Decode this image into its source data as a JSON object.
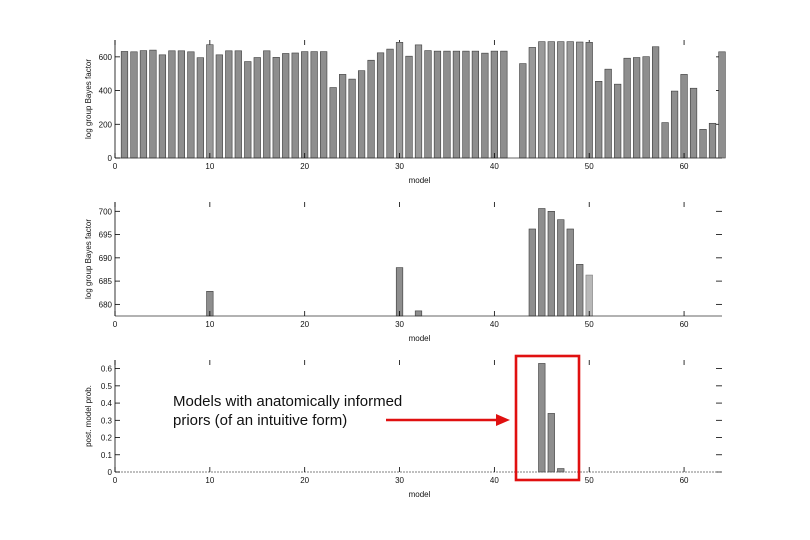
{
  "chart_data": [
    {
      "type": "bar",
      "xlabel": "model",
      "ylabel": "log group Bayes factor",
      "xlim": [
        0,
        64
      ],
      "ylim": [
        0,
        700
      ],
      "xticks": [
        0,
        10,
        20,
        30,
        40,
        50,
        60
      ],
      "yticks": [
        0,
        200,
        400,
        600
      ],
      "x": [
        1,
        2,
        3,
        4,
        5,
        6,
        7,
        8,
        9,
        10,
        11,
        12,
        13,
        14,
        15,
        16,
        17,
        18,
        19,
        20,
        21,
        22,
        23,
        24,
        25,
        26,
        27,
        28,
        29,
        30,
        31,
        32,
        33,
        34,
        35,
        36,
        37,
        38,
        39,
        40,
        41,
        42,
        43,
        44,
        45,
        46,
        47,
        48,
        49,
        50,
        51,
        52,
        53,
        54,
        55,
        56,
        57,
        58,
        59,
        60,
        61,
        62,
        63,
        64
      ],
      "values": [
        632,
        630,
        637,
        640,
        612,
        636,
        636,
        630,
        595,
        672,
        612,
        636,
        636,
        572,
        596,
        636,
        597,
        620,
        623,
        631,
        631,
        631,
        418,
        496,
        468,
        518,
        580,
        624,
        646,
        686,
        604,
        671,
        637,
        634,
        634,
        634,
        634,
        634,
        622,
        634,
        634,
        0,
        560,
        656,
        690,
        690,
        690,
        690,
        688,
        686,
        455,
        527,
        438,
        592,
        596,
        601,
        660,
        210,
        397,
        496,
        414,
        170,
        206,
        630
      ],
      "highlight": [
        10,
        30,
        32,
        44,
        45,
        46,
        47,
        48,
        49
      ]
    },
    {
      "type": "bar",
      "xlabel": "model",
      "ylabel": "log group Bayes factor",
      "xlim": [
        0,
        64
      ],
      "ylim": [
        677.5,
        702
      ],
      "xticks": [
        0,
        10,
        20,
        30,
        40,
        50,
        60
      ],
      "yticks": [
        680,
        685,
        690,
        695,
        700
      ],
      "x": [
        10,
        30,
        32,
        44,
        45,
        46,
        47,
        48,
        49
      ],
      "values": [
        682.8,
        687.9,
        678.6,
        696.2,
        700.6,
        700.0,
        698.2,
        696.2,
        688.6
      ],
      "extra": {
        "x": 50,
        "value": 686.3
      }
    },
    {
      "type": "bar",
      "xlabel": "model",
      "ylabel": "post. model prob.",
      "xlim": [
        0,
        64
      ],
      "ylim": [
        0,
        0.65
      ],
      "xticks": [
        0,
        10,
        20,
        30,
        40,
        50,
        60
      ],
      "yticks": [
        0,
        0.1,
        0.2,
        0.3,
        0.4,
        0.5,
        0.6
      ],
      "ytick_labels": [
        "0",
        "0.1",
        "0.2",
        "0.3",
        "0.4",
        "0.5",
        "0.6"
      ],
      "x": [
        45,
        46,
        47
      ],
      "values": [
        0.63,
        0.34,
        0.02
      ],
      "annotation": {
        "lines": [
          "Models with anatomically informed",
          "priors (of an intuitive form)"
        ],
        "arrow_color": "#e01010",
        "box_color": "#e01010"
      }
    }
  ],
  "colors": {
    "bar_fill": "#8e8e8e",
    "bar_stroke": "#3c3c3c",
    "bar_light": "#b8b8b8",
    "axis": "#000000",
    "highlight": "#e01010"
  }
}
